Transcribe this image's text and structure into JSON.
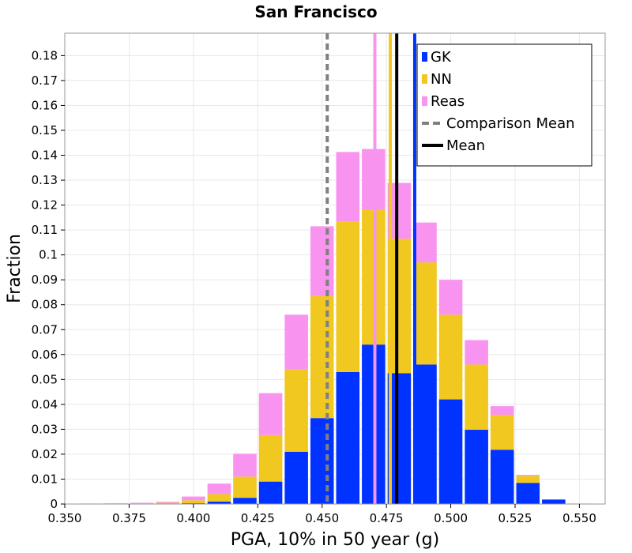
{
  "chart_data": {
    "type": "bar",
    "stacked": true,
    "title": "San Francisco",
    "xlabel": "PGA, 10% in 50 year (g)",
    "ylabel": "Fraction",
    "xlim": [
      0.35,
      0.56
    ],
    "ylim": [
      0,
      0.189
    ],
    "bin_width": 0.01,
    "x_ticks": [
      0.35,
      0.375,
      0.4,
      0.425,
      0.45,
      0.475,
      0.5,
      0.525,
      0.55
    ],
    "x_tick_labels": [
      "0.350",
      "0.375",
      "0.400",
      "0.425",
      "0.450",
      "0.475",
      "0.500",
      "0.525",
      "0.550"
    ],
    "y_ticks": [
      0,
      0.01,
      0.02,
      0.03,
      0.04,
      0.05,
      0.06,
      0.07,
      0.08,
      0.09,
      0.1,
      0.11,
      0.12,
      0.13,
      0.14,
      0.15,
      0.16,
      0.17,
      0.18
    ],
    "y_tick_labels": [
      "0",
      "0.01",
      "0.02",
      "0.03",
      "0.04",
      "0.05",
      "0.06",
      "0.07",
      "0.08",
      "0.09",
      "0.1",
      "0.11",
      "0.12",
      "0.13",
      "0.14",
      "0.15",
      "0.16",
      "0.17",
      "0.18"
    ],
    "bin_centers": [
      0.36,
      0.37,
      0.38,
      0.39,
      0.4,
      0.41,
      0.42,
      0.43,
      0.44,
      0.45,
      0.46,
      0.47,
      0.48,
      0.49,
      0.5,
      0.51,
      0.52,
      0.53,
      0.54,
      0.55
    ],
    "series": [
      {
        "name": "GK",
        "color": "#0033ff",
        "values": [
          0,
          0,
          0,
          0.0001,
          0.0003,
          0.001,
          0.0025,
          0.009,
          0.021,
          0.0345,
          0.053,
          0.064,
          0.0525,
          0.056,
          0.042,
          0.0298,
          0.0218,
          0.0085,
          0.0018,
          0.0001
        ]
      },
      {
        "name": "NN",
        "color": "#f0c820",
        "values": [
          0.0001,
          0.0002,
          0.0003,
          0.0004,
          0.0012,
          0.003,
          0.0085,
          0.0187,
          0.033,
          0.049,
          0.0605,
          0.054,
          0.054,
          0.041,
          0.034,
          0.0262,
          0.014,
          0.0028,
          0.0001,
          0
        ]
      },
      {
        "name": "Reas",
        "color": "#f993f0",
        "values": [
          0.0001,
          0.0001,
          0.0002,
          0.0004,
          0.0015,
          0.0042,
          0.0092,
          0.0168,
          0.022,
          0.028,
          0.0278,
          0.0245,
          0.0224,
          0.016,
          0.014,
          0.0098,
          0.0035,
          0.0004,
          0,
          0.0001
        ]
      }
    ],
    "vertical_lines": [
      {
        "name": "Comparison Mean",
        "x": 0.452,
        "color": "#808080",
        "style": "dashed",
        "in_legend": true
      },
      {
        "name": "Mean",
        "x": 0.479,
        "color": "#000000",
        "style": "solid",
        "in_legend": true
      },
      {
        "name": "GK",
        "x": 0.486,
        "color": "#0033ff",
        "style": "solid",
        "in_legend": false
      },
      {
        "name": "NN",
        "x": 0.4765,
        "color": "#f0c820",
        "style": "solid",
        "in_legend": false
      },
      {
        "name": "Reas",
        "x": 0.4705,
        "color": "#f993f0",
        "style": "solid",
        "in_legend": false
      }
    ],
    "legend": {
      "position": "top-right",
      "entries": [
        {
          "label": "GK",
          "kind": "box",
          "color": "#0033ff"
        },
        {
          "label": "NN",
          "kind": "box",
          "color": "#f0c820"
        },
        {
          "label": "Reas",
          "kind": "box",
          "color": "#f993f0"
        },
        {
          "label": "Comparison Mean",
          "kind": "dashed",
          "color": "#808080"
        },
        {
          "label": "Mean",
          "kind": "line",
          "color": "#000000"
        }
      ]
    },
    "grid": true
  }
}
